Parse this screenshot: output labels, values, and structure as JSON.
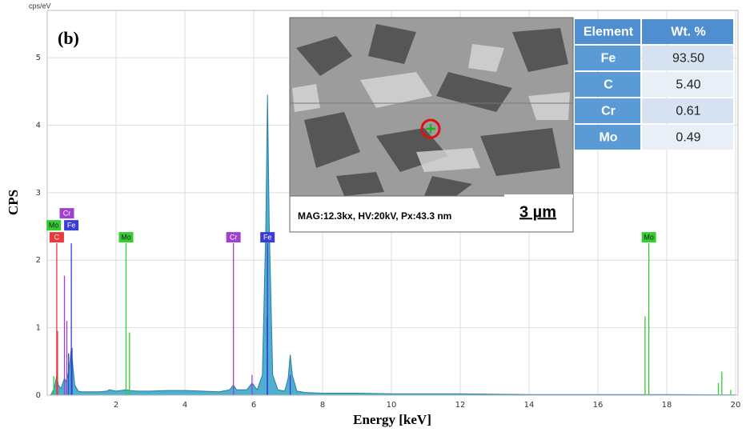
{
  "chart_data": {
    "type": "area",
    "title": "(b)",
    "y_unit": "cps/eV",
    "xlabel": "Energy [keV]",
    "ylabel": "CPS",
    "xlim": [
      0,
      20
    ],
    "ylim": [
      0,
      5.7
    ],
    "xticks": [
      2,
      4,
      6,
      8,
      10,
      12,
      14,
      16,
      18,
      20
    ],
    "yticks": [
      0,
      1,
      2,
      3,
      4,
      5
    ],
    "grid": true,
    "color": "#3ba7c9",
    "x": [
      0.1,
      0.15,
      0.2,
      0.25,
      0.28,
      0.32,
      0.4,
      0.5,
      0.55,
      0.6,
      0.65,
      0.7,
      0.75,
      0.8,
      0.9,
      1.0,
      1.2,
      1.5,
      1.74,
      1.8,
      2.0,
      2.29,
      2.4,
      2.6,
      3.0,
      3.5,
      4.0,
      4.5,
      5.0,
      5.3,
      5.41,
      5.5,
      5.8,
      5.95,
      6.1,
      6.25,
      6.35,
      6.4,
      6.45,
      6.55,
      6.7,
      6.9,
      7.0,
      7.06,
      7.12,
      7.25,
      7.5,
      8,
      9,
      10,
      12,
      14,
      16,
      18,
      20
    ],
    "values": [
      0,
      0.05,
      0.1,
      0.22,
      0.3,
      0.15,
      0.1,
      0.25,
      0.2,
      0.3,
      0.45,
      0.7,
      0.4,
      0.15,
      0.06,
      0.05,
      0.05,
      0.05,
      0.06,
      0.08,
      0.06,
      0.08,
      0.07,
      0.06,
      0.06,
      0.07,
      0.07,
      0.06,
      0.05,
      0.08,
      0.15,
      0.08,
      0.08,
      0.18,
      0.08,
      0.3,
      2.5,
      4.45,
      2.5,
      0.3,
      0.08,
      0.06,
      0.25,
      0.6,
      0.3,
      0.06,
      0.04,
      0.03,
      0.03,
      0.02,
      0.02,
      0.01,
      0.01,
      0.01,
      0.005
    ],
    "element_lines": [
      {
        "element": "C",
        "color": "#e83a3a",
        "label_x": [
          0.277
        ],
        "x": [
          0.277,
          0.3
        ],
        "heights": [
          2.25,
          0.95
        ]
      },
      {
        "element": "Fe",
        "color": "#3b3bd9",
        "label_x": [
          0.7,
          6.4
        ],
        "x": [
          0.62,
          0.7,
          0.72,
          6.4,
          6.39,
          7.06
        ],
        "heights": [
          0.62,
          2.25,
          0.7,
          2.25,
          1.15,
          0.3
        ]
      },
      {
        "element": "Cr",
        "color": "#a040d0",
        "label_x": [
          0.57,
          5.41
        ],
        "x": [
          0.5,
          0.57,
          5.41,
          5.95
        ],
        "heights": [
          1.77,
          1.1,
          2.25,
          0.3
        ]
      },
      {
        "element": "Mo",
        "color": "#33cc33",
        "label_x": [
          0.19,
          2.29,
          17.48
        ],
        "x": [
          0.19,
          2.29,
          2.39,
          17.37,
          17.48,
          19.5,
          19.6,
          19.86
        ],
        "heights": [
          0.28,
          2.25,
          0.93,
          1.17,
          2.25,
          0.18,
          0.35,
          0.08
        ]
      }
    ]
  },
  "inset": {
    "caption": "MAG:12.3kx, HV:20kV, Px:43.3 nm",
    "scale_bar": "3 µm"
  },
  "table": {
    "header": [
      "Element",
      "Wt. %"
    ],
    "rows": [
      [
        "Fe",
        "93.50"
      ],
      [
        "C",
        "5.40"
      ],
      [
        "Cr",
        "0.61"
      ],
      [
        "Mo",
        "0.49"
      ]
    ]
  }
}
